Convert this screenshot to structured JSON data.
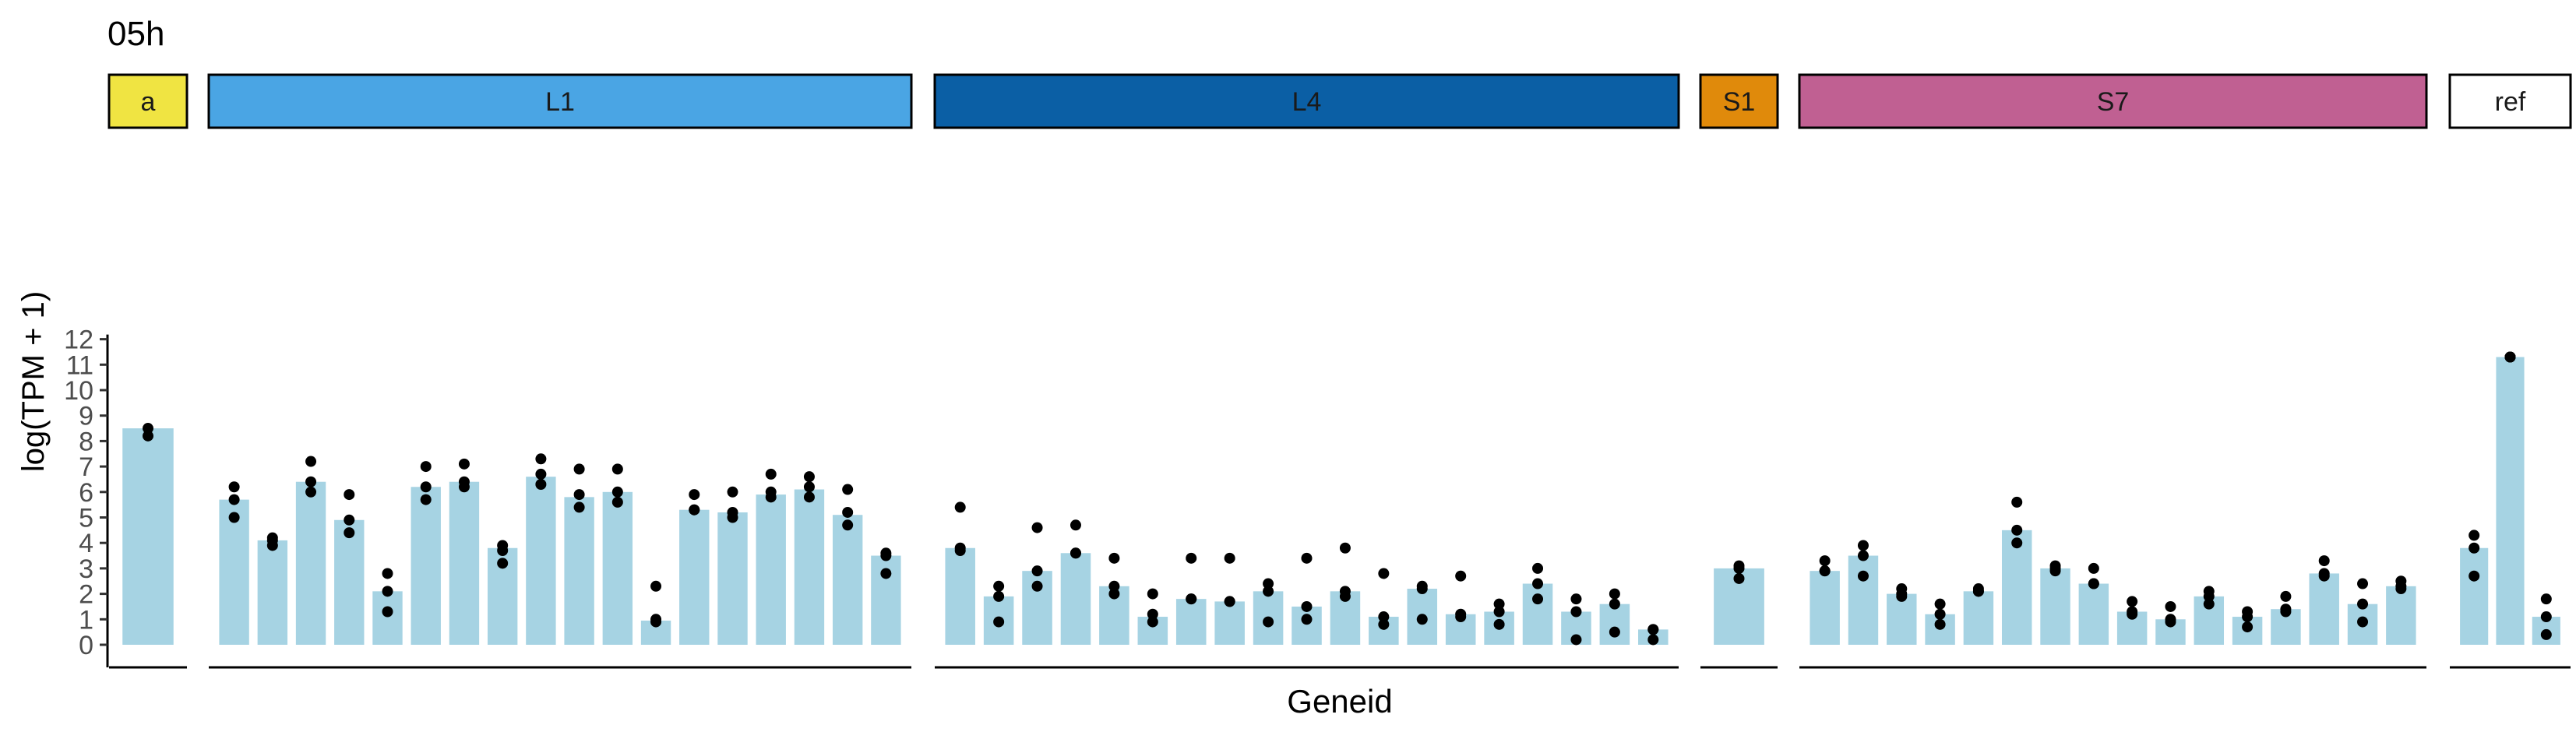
{
  "chart_data": {
    "type": "bar",
    "title": "05h",
    "xlabel": "Geneid",
    "ylabel": "log(TPM + 1)",
    "ylim": [
      0,
      12
    ],
    "yticks": [
      0,
      1,
      2,
      3,
      4,
      5,
      6,
      7,
      8,
      9,
      10,
      11,
      12
    ],
    "grid": false,
    "legend": "none",
    "bar_color": "#a6d3e3",
    "point_color": "#000000",
    "facets": [
      {
        "label": "a",
        "color": "#f0e442",
        "bars": [
          {
            "value": 8.5,
            "points": [
              8.2,
              8.5
            ]
          }
        ]
      },
      {
        "label": "L1",
        "color": "#4aa5e4",
        "bars": [
          {
            "value": 5.7,
            "points": [
              5.0,
              5.7,
              6.2
            ]
          },
          {
            "value": 4.1,
            "points": [
              3.9,
              4.1,
              4.2
            ]
          },
          {
            "value": 6.4,
            "points": [
              6.0,
              6.4,
              7.2
            ]
          },
          {
            "value": 4.9,
            "points": [
              4.4,
              4.9,
              5.9
            ]
          },
          {
            "value": 2.1,
            "points": [
              1.3,
              2.1,
              2.8
            ]
          },
          {
            "value": 6.2,
            "points": [
              5.7,
              6.2,
              7.0
            ]
          },
          {
            "value": 6.4,
            "points": [
              6.2,
              6.4,
              7.1
            ]
          },
          {
            "value": 3.8,
            "points": [
              3.2,
              3.7,
              3.9
            ]
          },
          {
            "value": 6.6,
            "points": [
              6.3,
              6.7,
              7.3
            ]
          },
          {
            "value": 5.8,
            "points": [
              5.4,
              5.9,
              6.9
            ]
          },
          {
            "value": 6.0,
            "points": [
              5.6,
              6.0,
              6.9
            ]
          },
          {
            "value": 0.95,
            "points": [
              0.9,
              1.0,
              2.3
            ]
          },
          {
            "value": 5.3,
            "points": [
              5.3,
              5.3,
              5.9
            ]
          },
          {
            "value": 5.2,
            "points": [
              5.0,
              5.2,
              6.0
            ]
          },
          {
            "value": 5.9,
            "points": [
              5.8,
              6.0,
              6.7
            ]
          },
          {
            "value": 6.1,
            "points": [
              5.8,
              6.2,
              6.6
            ]
          },
          {
            "value": 5.1,
            "points": [
              4.7,
              5.2,
              6.1
            ]
          },
          {
            "value": 3.5,
            "points": [
              2.8,
              3.5,
              3.6
            ]
          }
        ]
      },
      {
        "label": "L4",
        "color": "#0b5fa5",
        "bars": [
          {
            "value": 3.8,
            "points": [
              3.7,
              3.8,
              5.4
            ]
          },
          {
            "value": 1.9,
            "points": [
              0.9,
              1.9,
              2.3
            ]
          },
          {
            "value": 2.9,
            "points": [
              2.3,
              2.9,
              4.6
            ]
          },
          {
            "value": 3.6,
            "points": [
              3.6,
              3.6,
              4.7
            ]
          },
          {
            "value": 2.3,
            "points": [
              2.0,
              2.3,
              3.4
            ]
          },
          {
            "value": 1.1,
            "points": [
              0.9,
              1.2,
              2.0
            ]
          },
          {
            "value": 1.8,
            "points": [
              1.8,
              1.8,
              3.4
            ]
          },
          {
            "value": 1.7,
            "points": [
              1.7,
              1.7,
              3.4
            ]
          },
          {
            "value": 2.1,
            "points": [
              0.9,
              2.1,
              2.4
            ]
          },
          {
            "value": 1.5,
            "points": [
              1.0,
              1.5,
              3.4
            ]
          },
          {
            "value": 2.1,
            "points": [
              1.9,
              2.1,
              3.8
            ]
          },
          {
            "value": 1.1,
            "points": [
              0.8,
              1.1,
              2.8
            ]
          },
          {
            "value": 2.2,
            "points": [
              1.0,
              2.2,
              2.3
            ]
          },
          {
            "value": 1.2,
            "points": [
              1.1,
              1.2,
              2.7
            ]
          },
          {
            "value": 1.3,
            "points": [
              0.8,
              1.3,
              1.6
            ]
          },
          {
            "value": 2.4,
            "points": [
              1.8,
              2.4,
              3.0
            ]
          },
          {
            "value": 1.3,
            "points": [
              0.2,
              1.3,
              1.8
            ]
          },
          {
            "value": 1.6,
            "points": [
              0.5,
              1.6,
              2.0
            ]
          },
          {
            "value": 0.6,
            "points": [
              0.2,
              0.6,
              0.6
            ]
          }
        ]
      },
      {
        "label": "S1",
        "color": "#e08a0b",
        "bars": [
          {
            "value": 3.0,
            "points": [
              2.6,
              3.0,
              3.1
            ]
          }
        ]
      },
      {
        "label": "S7",
        "color": "#c06092",
        "bars": [
          {
            "value": 2.9,
            "points": [
              2.9,
              2.9,
              3.3
            ]
          },
          {
            "value": 3.5,
            "points": [
              2.7,
              3.5,
              3.9
            ]
          },
          {
            "value": 2.0,
            "points": [
              1.9,
              2.0,
              2.2
            ]
          },
          {
            "value": 1.2,
            "points": [
              0.8,
              1.2,
              1.6
            ]
          },
          {
            "value": 2.1,
            "points": [
              2.1,
              2.1,
              2.2
            ]
          },
          {
            "value": 4.5,
            "points": [
              4.0,
              4.5,
              5.6
            ]
          },
          {
            "value": 3.0,
            "points": [
              2.9,
              3.0,
              3.1
            ]
          },
          {
            "value": 2.4,
            "points": [
              2.4,
              2.4,
              3.0
            ]
          },
          {
            "value": 1.3,
            "points": [
              1.2,
              1.3,
              1.7
            ]
          },
          {
            "value": 1.0,
            "points": [
              0.9,
              1.0,
              1.5
            ]
          },
          {
            "value": 1.9,
            "points": [
              1.6,
              1.9,
              2.1
            ]
          },
          {
            "value": 1.1,
            "points": [
              0.7,
              1.1,
              1.3
            ]
          },
          {
            "value": 1.4,
            "points": [
              1.3,
              1.4,
              1.9
            ]
          },
          {
            "value": 2.8,
            "points": [
              2.7,
              2.8,
              3.3
            ]
          },
          {
            "value": 1.6,
            "points": [
              0.9,
              1.6,
              2.4
            ]
          },
          {
            "value": 2.3,
            "points": [
              2.2,
              2.3,
              2.5
            ]
          }
        ]
      },
      {
        "label": "ref",
        "color": "#ffffff",
        "bars": [
          {
            "value": 3.8,
            "points": [
              2.7,
              3.8,
              4.3
            ]
          },
          {
            "value": 11.3,
            "points": [
              11.3,
              11.3,
              11.3
            ]
          },
          {
            "value": 1.1,
            "points": [
              0.4,
              1.1,
              1.8
            ]
          }
        ]
      }
    ]
  }
}
